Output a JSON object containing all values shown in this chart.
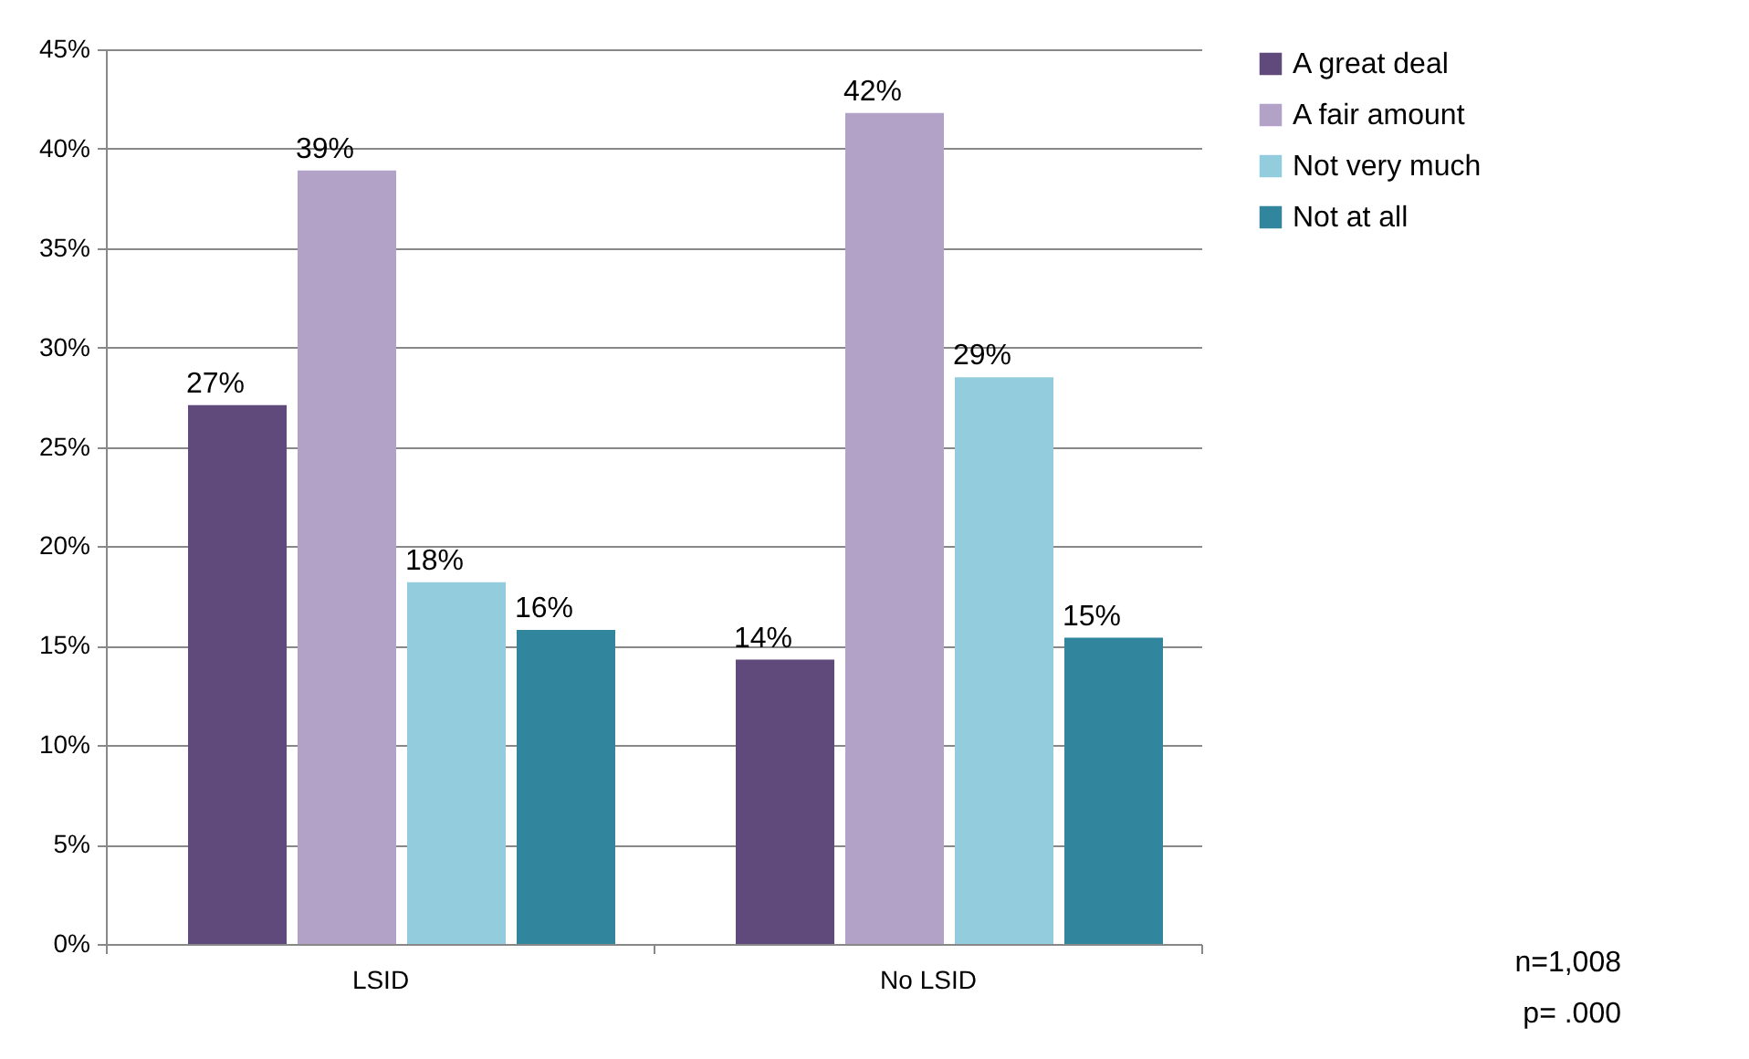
{
  "chart_data": {
    "type": "bar",
    "categories": [
      "LSID",
      "No LSID"
    ],
    "series": [
      {
        "name": "A great deal",
        "color": "#604a7b",
        "values": [
          27.1,
          14.3
        ],
        "value_labels": [
          "27%",
          "14%"
        ]
      },
      {
        "name": "A fair amount",
        "color": "#b3a2c7",
        "values": [
          38.9,
          41.8
        ],
        "value_labels": [
          "39%",
          "42%"
        ]
      },
      {
        "name": "Not very much",
        "color": "#93cddd",
        "values": [
          18.2,
          28.5
        ],
        "value_labels": [
          "18%",
          "29%"
        ]
      },
      {
        "name": "Not at all",
        "color": "#31859c",
        "values": [
          15.8,
          15.4
        ],
        "value_labels": [
          "16%",
          "15%"
        ]
      }
    ],
    "ylim": [
      0,
      45
    ],
    "yticks": [
      {
        "value": 0,
        "label": "0%"
      },
      {
        "value": 5,
        "label": "5%"
      },
      {
        "value": 10,
        "label": "10%"
      },
      {
        "value": 15,
        "label": "15%"
      },
      {
        "value": 20,
        "label": "20%"
      },
      {
        "value": 25,
        "label": "25%"
      },
      {
        "value": 30,
        "label": "30%"
      },
      {
        "value": 35,
        "label": "35%"
      },
      {
        "value": 40,
        "label": "40%"
      },
      {
        "value": 45,
        "label": "45%"
      }
    ],
    "grid": "y",
    "legend": "right",
    "annotations": [
      "n=1,008",
      "p= .000"
    ]
  }
}
